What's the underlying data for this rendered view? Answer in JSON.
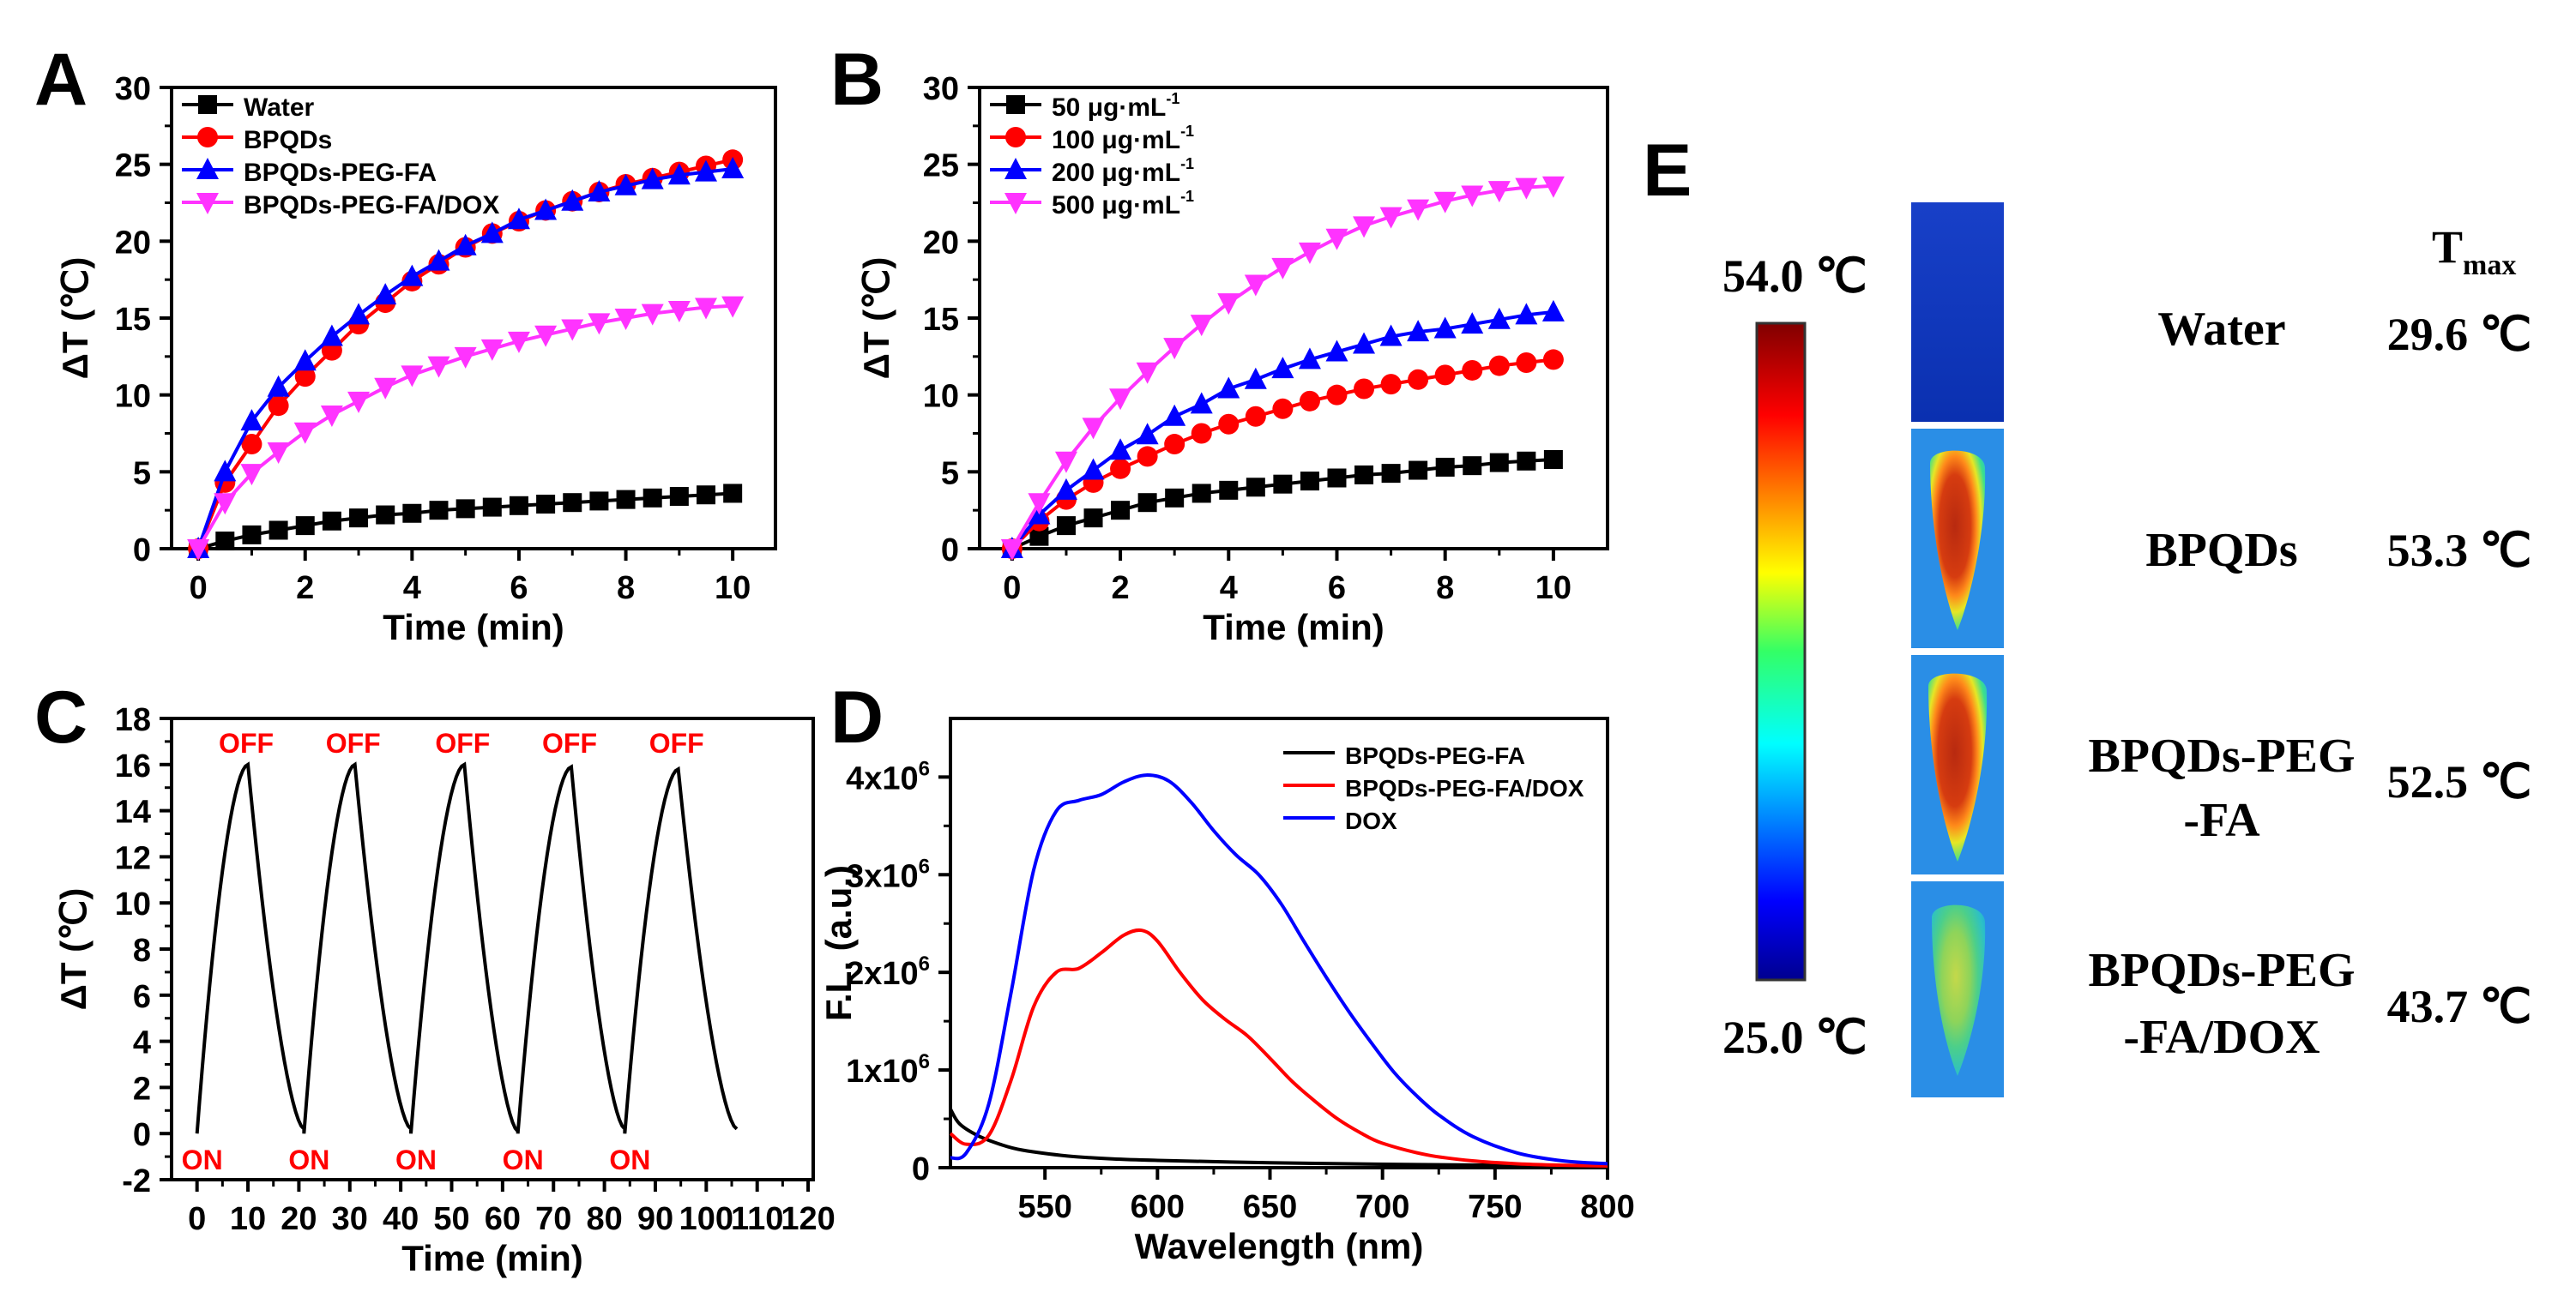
{
  "panel_letters": [
    "A",
    "B",
    "C",
    "D",
    "E"
  ],
  "colors": {
    "black": "#000000",
    "red": "#ff0000",
    "blue": "#0000ff",
    "magenta": "#ff33ff",
    "label_red": "#ff0000"
  },
  "chart_data": [
    {
      "id": "A",
      "type": "line",
      "xlabel": "Time (min)",
      "ylabel": "ΔT (℃)",
      "xlim": [
        -0.5,
        10.8
      ],
      "ylim": [
        0,
        30
      ],
      "xticks": [
        0,
        2,
        4,
        6,
        8,
        10
      ],
      "yticks": [
        0,
        5,
        10,
        15,
        20,
        25,
        30
      ],
      "x": [
        0,
        0.5,
        1,
        1.5,
        2,
        2.5,
        3,
        3.5,
        4,
        4.5,
        5,
        5.5,
        6,
        6.5,
        7,
        7.5,
        8,
        8.5,
        9,
        9.5,
        10
      ],
      "legend_position": "top-left",
      "series": [
        {
          "name": "Water",
          "color": "#000000",
          "marker": "square",
          "values": [
            0,
            0.5,
            0.9,
            1.2,
            1.5,
            1.8,
            2.0,
            2.2,
            2.3,
            2.5,
            2.6,
            2.7,
            2.8,
            2.9,
            3.0,
            3.1,
            3.2,
            3.3,
            3.4,
            3.5,
            3.6
          ]
        },
        {
          "name": "BPQDs",
          "color": "#ff0000",
          "marker": "circle",
          "values": [
            0,
            4.3,
            6.8,
            9.3,
            11.2,
            12.9,
            14.6,
            16.0,
            17.4,
            18.5,
            19.6,
            20.5,
            21.3,
            22.0,
            22.6,
            23.2,
            23.7,
            24.1,
            24.5,
            24.9,
            25.3
          ]
        },
        {
          "name": "BPQDs-PEG-FA",
          "color": "#0000ff",
          "marker": "triangle-up",
          "values": [
            0,
            5.0,
            8.3,
            10.5,
            12.2,
            13.8,
            15.2,
            16.5,
            17.7,
            18.7,
            19.7,
            20.5,
            21.4,
            22.0,
            22.6,
            23.2,
            23.6,
            24.0,
            24.3,
            24.5,
            24.7
          ]
        },
        {
          "name": "BPQDs-PEG-FA/DOX",
          "color": "#ff33ff",
          "marker": "triangle-down",
          "values": [
            0,
            3.0,
            4.9,
            6.3,
            7.6,
            8.7,
            9.6,
            10.5,
            11.3,
            11.9,
            12.5,
            13.0,
            13.5,
            13.9,
            14.3,
            14.7,
            15.0,
            15.3,
            15.5,
            15.7,
            15.8
          ]
        }
      ]
    },
    {
      "id": "B",
      "type": "line",
      "xlabel": "Time (min)",
      "ylabel": "ΔT (℃)",
      "xlim": [
        -0.6,
        11.0
      ],
      "ylim": [
        0,
        30
      ],
      "xticks": [
        0,
        2,
        4,
        6,
        8,
        10
      ],
      "yticks": [
        0,
        5,
        10,
        15,
        20,
        25,
        30
      ],
      "x": [
        0,
        0.5,
        1,
        1.5,
        2,
        2.5,
        3,
        3.5,
        4,
        4.5,
        5,
        5.5,
        6,
        6.5,
        7,
        7.5,
        8,
        8.5,
        9,
        9.5,
        10
      ],
      "legend_position": "top-left",
      "series": [
        {
          "name": "50 μg·mL",
          "name_sup": "-1",
          "color": "#000000",
          "marker": "square",
          "values": [
            0,
            0.8,
            1.5,
            2.0,
            2.5,
            3.0,
            3.3,
            3.6,
            3.8,
            4.0,
            4.2,
            4.4,
            4.6,
            4.8,
            4.9,
            5.1,
            5.3,
            5.4,
            5.6,
            5.7,
            5.8
          ]
        },
        {
          "name": "100 μg·mL",
          "name_sup": "-1",
          "color": "#ff0000",
          "marker": "circle",
          "values": [
            0,
            1.8,
            3.2,
            4.3,
            5.2,
            6.0,
            6.8,
            7.5,
            8.1,
            8.6,
            9.1,
            9.6,
            10.0,
            10.4,
            10.7,
            11.0,
            11.3,
            11.6,
            11.9,
            12.1,
            12.3
          ]
        },
        {
          "name": "200 μg·mL",
          "name_sup": "-1",
          "color": "#0000ff",
          "marker": "triangle-up",
          "values": [
            0,
            2.2,
            3.8,
            5.1,
            6.4,
            7.4,
            8.6,
            9.4,
            10.4,
            11.0,
            11.7,
            12.3,
            12.8,
            13.3,
            13.8,
            14.1,
            14.3,
            14.6,
            14.9,
            15.2,
            15.4
          ]
        },
        {
          "name": "500 μg·mL",
          "name_sup": "-1",
          "color": "#ff33ff",
          "marker": "triangle-down",
          "values": [
            0,
            3.0,
            5.7,
            7.9,
            9.8,
            11.5,
            13.1,
            14.6,
            16.0,
            17.2,
            18.3,
            19.3,
            20.2,
            21.0,
            21.6,
            22.1,
            22.6,
            23.0,
            23.3,
            23.5,
            23.6
          ]
        }
      ]
    },
    {
      "id": "C",
      "type": "line",
      "xlabel": "Time (min)",
      "ylabel": "ΔT (℃)",
      "xlim": [
        -5,
        121
      ],
      "ylim": [
        -2,
        18
      ],
      "xticks": [
        0,
        10,
        20,
        30,
        40,
        50,
        60,
        70,
        80,
        90,
        100,
        110,
        120
      ],
      "yticks": [
        -2,
        0,
        2,
        4,
        6,
        8,
        10,
        12,
        14,
        16,
        18
      ],
      "cycles": [
        {
          "on_time": 0,
          "peak_time": 10,
          "peak_value": 16.0,
          "end_time": 21,
          "end_value": 0.2
        },
        {
          "on_time": 21,
          "peak_time": 31,
          "peak_value": 16.0,
          "end_time": 42,
          "end_value": 0.2
        },
        {
          "on_time": 42,
          "peak_time": 52.5,
          "peak_value": 16.0,
          "end_time": 63,
          "end_value": 0.1
        },
        {
          "on_time": 63,
          "peak_time": 73.5,
          "peak_value": 15.9,
          "end_time": 84,
          "end_value": 0.2
        },
        {
          "on_time": 84,
          "peak_time": 94.5,
          "peak_value": 15.8,
          "end_time": 106,
          "end_value": 0.2
        }
      ],
      "off_label": "OFF",
      "on_label": "ON",
      "annotation_color": "#ff0000"
    },
    {
      "id": "D",
      "type": "line",
      "xlabel": "Wavelength (nm)",
      "ylabel": "F.L. (a.u.)",
      "xlim": [
        508,
        800
      ],
      "ylim": [
        0,
        4600000
      ],
      "xticks": [
        550,
        600,
        650,
        700,
        750,
        800
      ],
      "yticks": [
        0,
        1000000,
        2000000,
        3000000,
        4000000
      ],
      "ytick_labels": [
        {
          "base": "0",
          "exp": ""
        },
        {
          "base": "1x10",
          "exp": "6"
        },
        {
          "base": "2x10",
          "exp": "6"
        },
        {
          "base": "3x10",
          "exp": "6"
        },
        {
          "base": "4x10",
          "exp": "6"
        }
      ],
      "legend_position": "top-right",
      "series": [
        {
          "name": "BPQDs-PEG-FA",
          "color": "#000000",
          "x": [
            508,
            512,
            520,
            530,
            540,
            560,
            580,
            600,
            650,
            700,
            750,
            800
          ],
          "values": [
            600000,
            450000,
            330000,
            240000,
            180000,
            120000,
            90000,
            75000,
            50000,
            35000,
            25000,
            20000
          ]
        },
        {
          "name": "BPQDs-PEG-FA/DOX",
          "color": "#ff0000",
          "x": [
            508,
            515,
            525,
            535,
            545,
            555,
            565,
            575,
            585,
            593,
            600,
            610,
            620,
            630,
            640,
            650,
            660,
            670,
            680,
            690,
            700,
            720,
            740,
            760,
            780,
            800
          ],
          "values": [
            350000,
            240000,
            330000,
            900000,
            1650000,
            2000000,
            2040000,
            2200000,
            2380000,
            2430000,
            2320000,
            2000000,
            1720000,
            1520000,
            1350000,
            1120000,
            880000,
            680000,
            500000,
            360000,
            250000,
            130000,
            70000,
            40000,
            25000,
            18000
          ]
        },
        {
          "name": "DOX",
          "color": "#0000ff",
          "x": [
            508,
            515,
            525,
            535,
            545,
            555,
            565,
            575,
            585,
            595,
            605,
            615,
            625,
            635,
            645,
            655,
            665,
            675,
            685,
            695,
            705,
            715,
            725,
            740,
            760,
            780,
            800
          ],
          "values": [
            100000,
            150000,
            650000,
            1800000,
            3050000,
            3650000,
            3760000,
            3820000,
            3950000,
            4020000,
            3960000,
            3740000,
            3450000,
            3200000,
            3000000,
            2700000,
            2320000,
            1950000,
            1600000,
            1280000,
            980000,
            740000,
            540000,
            320000,
            150000,
            70000,
            40000
          ]
        }
      ]
    }
  ],
  "panel_e": {
    "scale_max_label": "54.0 ℃",
    "scale_min_label": "25.0 ℃",
    "tmax_header_main": "T",
    "tmax_header_sub": "max",
    "samples": [
      {
        "name_lines": [
          "Water"
        ],
        "tmax": "29.6 ℃",
        "heat": 0.0
      },
      {
        "name_lines": [
          "BPQDs"
        ],
        "tmax": "53.3 ℃",
        "heat": 1.0
      },
      {
        "name_lines": [
          "BPQDs-PEG",
          "-FA"
        ],
        "tmax": "52.5 ℃",
        "heat": 0.95
      },
      {
        "name_lines": [
          "BPQDs-PEG",
          "-FA/DOX"
        ],
        "tmax": "43.7 ℃",
        "heat": 0.45
      }
    ]
  }
}
